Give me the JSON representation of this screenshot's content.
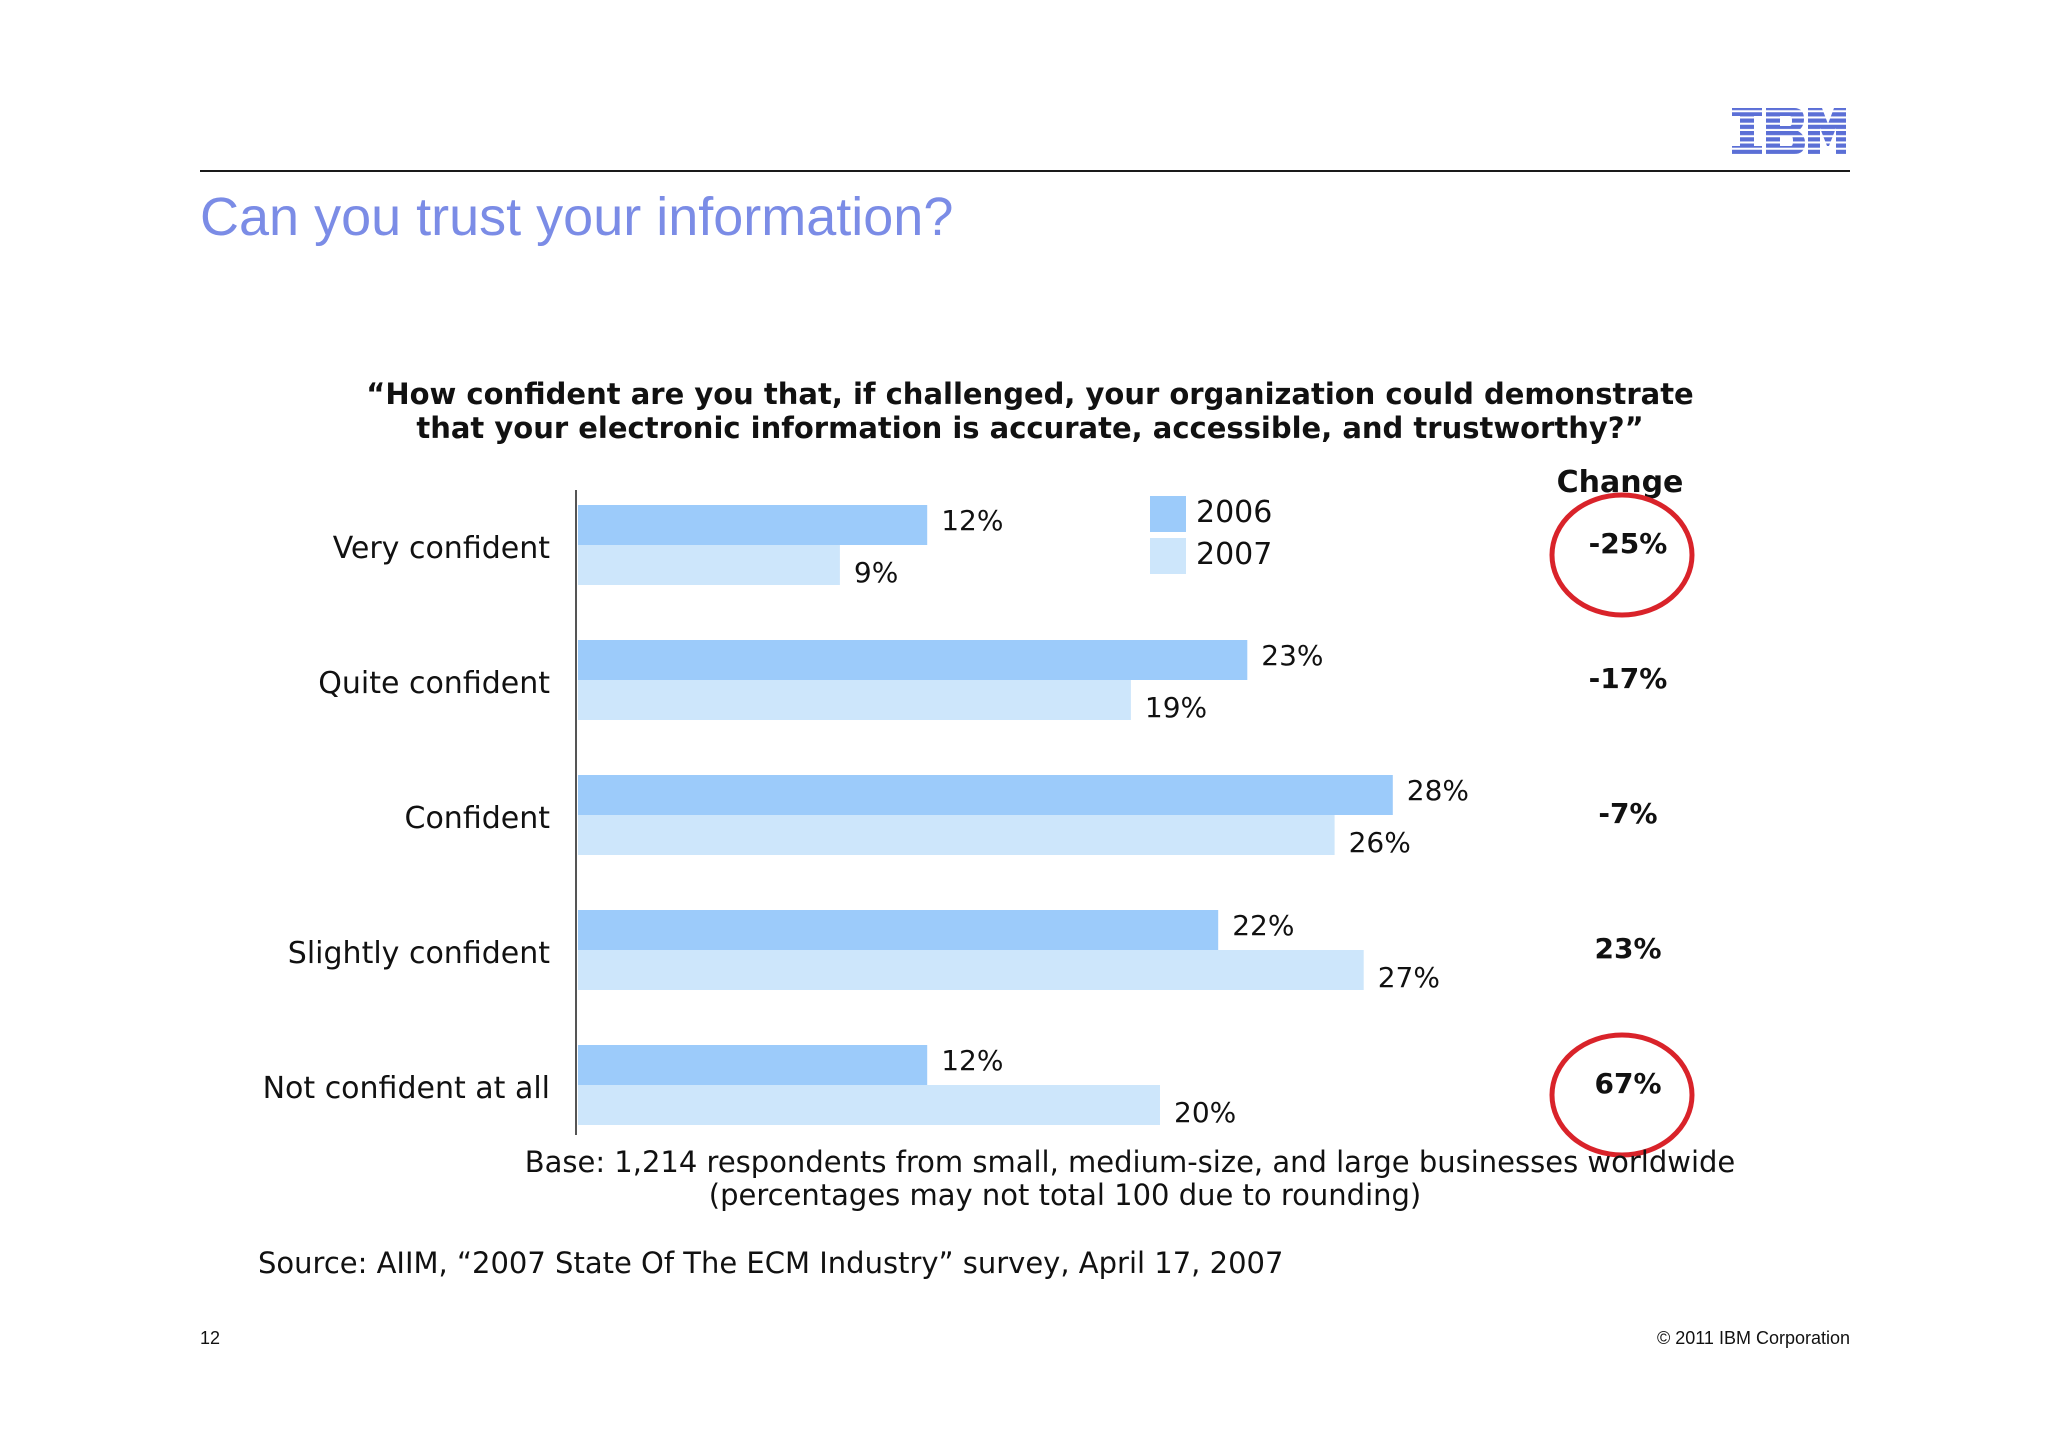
{
  "slide": {
    "title": "Can you trust your information?",
    "logo_text": "IBM",
    "page_number": "12",
    "copyright": "© 2011 IBM Corporation"
  },
  "colors": {
    "title": "#7b8ce6",
    "series_2006": "#9ccbfa",
    "series_2007": "#cde6fb",
    "highlight_circle": "#d9232a",
    "logo": "#5b6fd6"
  },
  "chart_data": {
    "type": "bar",
    "orientation": "horizontal",
    "title": "“How confident are you that, if challenged, your organization could demonstrate that your electronic information is accurate, accessible, and trustworthy?”",
    "title_lines": [
      "“How confident are you that, if challenged, your organization could demonstrate",
      "that your electronic information is accurate, accessible, and trustworthy?”"
    ],
    "categories": [
      "Very confident",
      "Quite confident",
      "Confident",
      "Slightly confident",
      "Not confident at all"
    ],
    "series": [
      {
        "name": "2006",
        "values": [
          12,
          23,
          28,
          22,
          12
        ],
        "labels": [
          "12%",
          "23%",
          "28%",
          "22%",
          "12%"
        ]
      },
      {
        "name": "2007",
        "values": [
          9,
          19,
          26,
          27,
          20
        ],
        "labels": [
          "9%",
          "19%",
          "26%",
          "27%",
          "20%"
        ]
      }
    ],
    "value_unit": "%",
    "xlim": [
      0,
      28
    ],
    "grid": false,
    "legend_position": "top-right",
    "change_header": "Change",
    "change_values": [
      "-25%",
      "-17%",
      "-7%",
      "23%",
      "67%"
    ],
    "highlighted_changes": [
      0,
      4
    ],
    "base_note": "Base:  1,214 respondents from small, medium-size, and large businesses worldwide",
    "rounding_note": "(percentages may not total 100 due to rounding)",
    "source": "Source: AIIM, “2007 State Of The ECM Industry” survey, April 17, 2007"
  }
}
